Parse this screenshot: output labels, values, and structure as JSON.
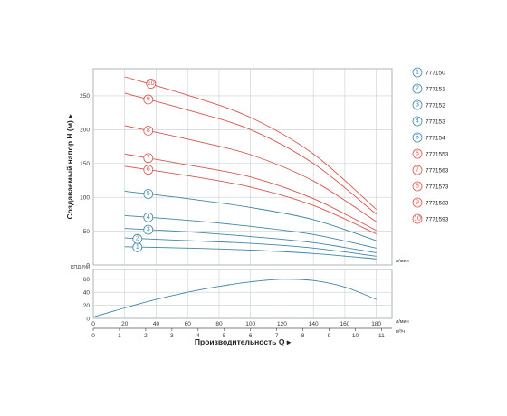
{
  "chart_data": [
    {
      "type": "line",
      "ylabel": "Создаваемый напор H (м) ▸",
      "ylim": [
        0,
        290
      ],
      "yticks": [
        0,
        50,
        100,
        150,
        200,
        250
      ],
      "x_units": "л/мин",
      "xlim": [
        0,
        190
      ],
      "grid": true,
      "series": [
        {
          "name": "777150",
          "marker": "1",
          "color": "#3e86a7",
          "x": [
            20,
            60,
            100,
            140,
            180
          ],
          "y": [
            27,
            25,
            22,
            17,
            9
          ]
        },
        {
          "name": "777151",
          "marker": "2",
          "color": "#3e86a7",
          "x": [
            20,
            60,
            100,
            140,
            180
          ],
          "y": [
            40,
            36,
            32,
            25,
            13
          ]
        },
        {
          "name": "777152",
          "marker": "3",
          "color": "#3e86a7",
          "x": [
            20,
            60,
            100,
            140,
            180
          ],
          "y": [
            54,
            49,
            42,
            33,
            18
          ]
        },
        {
          "name": "777153",
          "marker": "4",
          "color": "#3e86a7",
          "x": [
            20,
            60,
            100,
            140,
            180
          ],
          "y": [
            73,
            66,
            57,
            45,
            25
          ]
        },
        {
          "name": "777154",
          "marker": "5",
          "color": "#3e86a7",
          "x": [
            20,
            60,
            100,
            140,
            180
          ],
          "y": [
            109,
            98,
            85,
            67,
            36
          ]
        },
        {
          "name": "7771553",
          "marker": "6",
          "color": "#d9534f",
          "x": [
            20,
            60,
            100,
            140,
            180
          ],
          "y": [
            146,
            132,
            115,
            88,
            46
          ]
        },
        {
          "name": "7771563",
          "marker": "7",
          "color": "#d9534f",
          "x": [
            20,
            60,
            100,
            140,
            180
          ],
          "y": [
            164,
            148,
            130,
            98,
            51
          ]
        },
        {
          "name": "7771573",
          "marker": "8",
          "color": "#d9534f",
          "x": [
            20,
            60,
            100,
            140,
            180
          ],
          "y": [
            206,
            186,
            163,
            124,
            64
          ]
        },
        {
          "name": "7771583",
          "marker": "9",
          "color": "#d9534f",
          "x": [
            20,
            60,
            100,
            140,
            180
          ],
          "y": [
            254,
            229,
            200,
            150,
            75
          ]
        },
        {
          "name": "7771593",
          "marker": "10",
          "color": "#d9534f",
          "x": [
            20,
            60,
            100,
            140,
            180
          ],
          "y": [
            278,
            251,
            218,
            164,
            82
          ]
        }
      ]
    },
    {
      "type": "line",
      "ylabel": "КПД (%)",
      "ylim": [
        0,
        75
      ],
      "yticks": [
        0,
        20,
        40,
        60
      ],
      "xlabel": "Производительность Q ▸",
      "xticks": [
        0,
        20,
        40,
        60,
        80,
        100,
        120,
        140,
        160,
        180
      ],
      "xlim": [
        0,
        190
      ],
      "x_units_top": "л/мин",
      "x_units_bottom": "м³/ч",
      "secondary_xticks": [
        0,
        1,
        2,
        3,
        4,
        5,
        6,
        7,
        8,
        9,
        10,
        11
      ],
      "grid": true,
      "series": [
        {
          "color": "#3e86a7",
          "x": [
            0,
            20,
            40,
            60,
            80,
            100,
            120,
            140,
            160,
            180
          ],
          "y": [
            2,
            16,
            29,
            40,
            49,
            56,
            60,
            58,
            48,
            29
          ]
        }
      ]
    }
  ]
}
